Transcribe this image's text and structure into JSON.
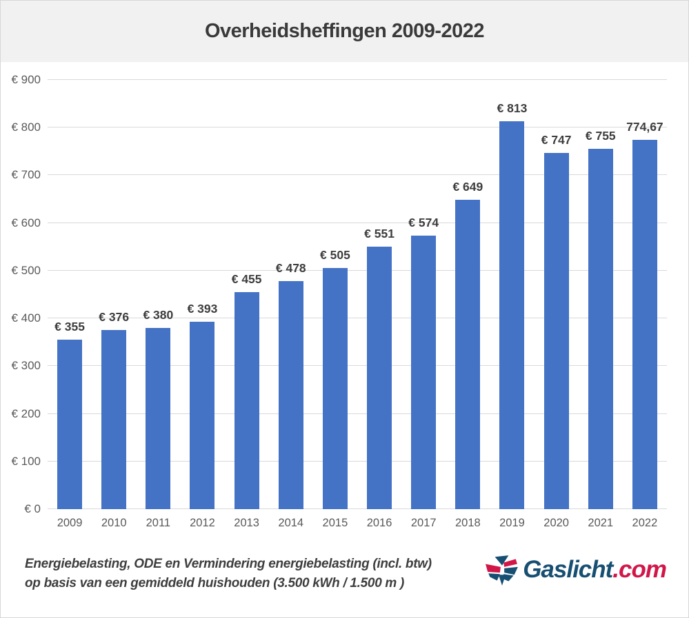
{
  "header": {
    "title": "Overheidsheffingen 2009-2022"
  },
  "chart_data": {
    "type": "bar",
    "title": "Overheidsheffingen 2009-2022",
    "categories": [
      "2009",
      "2010",
      "2011",
      "2012",
      "2013",
      "2014",
      "2015",
      "2016",
      "2017",
      "2018",
      "2019",
      "2020",
      "2021",
      "2022"
    ],
    "values": [
      355,
      376,
      380,
      393,
      455,
      478,
      505,
      551,
      574,
      649,
      813,
      747,
      755,
      774.67
    ],
    "bar_labels": [
      "€ 355",
      "€ 376",
      "€ 380",
      "€ 393",
      "€ 455",
      "€ 478",
      "€ 505",
      "€ 551",
      "€ 574",
      "€ 649",
      "€ 813",
      "€ 747",
      "€ 755",
      "774,67"
    ],
    "xlabel": "",
    "ylabel": "",
    "ylim": [
      0,
      900
    ],
    "ytick_step": 100,
    "ytick_labels": [
      "€ 0",
      "€ 100",
      "€ 200",
      "€ 300",
      "€ 400",
      "€ 500",
      "€ 600",
      "€ 700",
      "€ 800",
      "€ 900"
    ],
    "grid": true,
    "legend": false,
    "bar_color": "#4472c4"
  },
  "footnote": {
    "line1": "Energiebelasting, ODE en Vermindering energiebelasting (incl. btw)",
    "line2": "op basis van een gemiddeld huishouden (3.500 kWh / 1.500 m )"
  },
  "logo": {
    "name": "Gaslicht",
    "tld": ".com",
    "blue": "#174f72",
    "red": "#d11648"
  }
}
